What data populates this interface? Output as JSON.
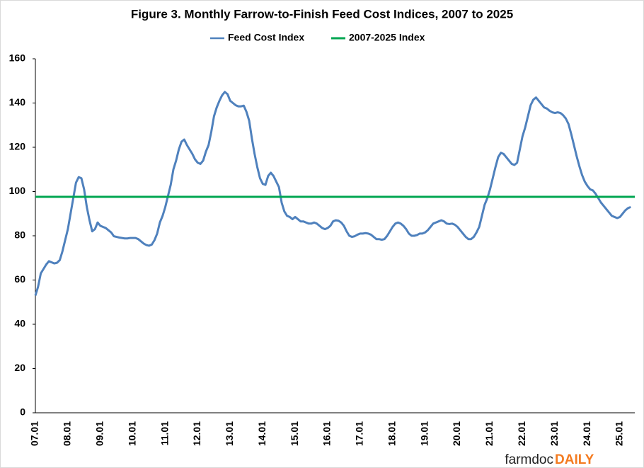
{
  "chart_data": {
    "type": "line",
    "title": "Figure 3.  Monthly Farrow-to-Finish Feed Cost Indices, 2007 to 2025",
    "categories": [
      "07.01",
      null,
      null,
      null,
      null,
      null,
      null,
      null,
      null,
      null,
      null,
      null,
      "08.01",
      null,
      null,
      null,
      null,
      null,
      null,
      null,
      null,
      null,
      null,
      null,
      "09.01",
      null,
      null,
      null,
      null,
      null,
      null,
      null,
      null,
      null,
      null,
      null,
      "10.01",
      null,
      null,
      null,
      null,
      null,
      null,
      null,
      null,
      null,
      null,
      null,
      "11.01",
      null,
      null,
      null,
      null,
      null,
      null,
      null,
      null,
      null,
      null,
      null,
      "12.01",
      null,
      null,
      null,
      null,
      null,
      null,
      null,
      null,
      null,
      null,
      null,
      "13.01",
      null,
      null,
      null,
      null,
      null,
      null,
      null,
      null,
      null,
      null,
      null,
      "14.01",
      null,
      null,
      null,
      null,
      null,
      null,
      null,
      null,
      null,
      null,
      null,
      "15.01",
      null,
      null,
      null,
      null,
      null,
      null,
      null,
      null,
      null,
      null,
      null,
      "16.01",
      null,
      null,
      null,
      null,
      null,
      null,
      null,
      null,
      null,
      null,
      null,
      "17.01",
      null,
      null,
      null,
      null,
      null,
      null,
      null,
      null,
      null,
      null,
      null,
      "18.01",
      null,
      null,
      null,
      null,
      null,
      null,
      null,
      null,
      null,
      null,
      null,
      "19.01",
      null,
      null,
      null,
      null,
      null,
      null,
      null,
      null,
      null,
      null,
      null,
      "20.01",
      null,
      null,
      null,
      null,
      null,
      null,
      null,
      null,
      null,
      null,
      null,
      "21.01",
      null,
      null,
      null,
      null,
      null,
      null,
      null,
      null,
      null,
      null,
      null,
      "22.01",
      null,
      null,
      null,
      null,
      null,
      null,
      null,
      null,
      null,
      null,
      null,
      "23.01",
      null,
      null,
      null,
      null,
      null,
      null,
      null,
      null,
      null,
      null,
      null,
      "24.01",
      null,
      null,
      null,
      null,
      null,
      null,
      null,
      null,
      null,
      null,
      null,
      "25.01",
      null,
      null,
      null,
      null
    ],
    "series": [
      {
        "name": "Feed Cost Index",
        "color": "#4f81bd",
        "values": [
          53,
          57,
          63,
          65,
          67,
          68.5,
          68,
          67.5,
          67.8,
          69,
          73,
          78,
          83,
          90,
          97,
          104,
          106.5,
          106,
          101,
          93,
          87,
          82,
          83,
          86,
          84.5,
          84,
          83.5,
          82.5,
          81.5,
          79.8,
          79.5,
          79.2,
          79,
          78.8,
          78.8,
          79,
          79,
          79,
          78.5,
          77.5,
          76.5,
          75.8,
          75.5,
          76,
          78,
          81,
          86,
          89,
          93,
          98,
          103,
          110,
          114,
          119,
          122.5,
          123.5,
          121,
          119,
          117,
          114.5,
          113,
          112.5,
          114,
          118,
          121,
          127,
          134,
          138,
          141,
          143.5,
          145,
          144,
          141,
          140,
          139,
          138.5,
          138.5,
          138.8,
          136,
          132,
          124,
          117,
          111,
          106,
          103.5,
          103,
          107,
          108.5,
          107,
          104.5,
          102,
          95,
          91,
          89,
          88.5,
          87.5,
          88.5,
          87.5,
          86.5,
          86.5,
          86,
          85.5,
          85.5,
          86,
          85.5,
          84.5,
          83.5,
          83,
          83.5,
          84.5,
          86.5,
          87,
          86.8,
          86,
          84.5,
          82,
          80,
          79.5,
          79.8,
          80.5,
          81,
          81,
          81.2,
          81,
          80.5,
          79.5,
          78.5,
          78.5,
          78.2,
          78.5,
          80,
          82,
          84,
          85.5,
          86,
          85.5,
          84.5,
          83,
          81,
          80,
          80,
          80.3,
          81,
          81,
          81.5,
          82.5,
          84,
          85.5,
          86,
          86.5,
          87,
          86.5,
          85.5,
          85.3,
          85.5,
          85,
          84,
          82.5,
          81,
          79.5,
          78.5,
          78.5,
          79.5,
          81.5,
          84,
          89,
          94,
          97,
          101,
          106,
          111,
          115.5,
          117.5,
          117,
          115.5,
          114,
          112.5,
          112,
          113,
          119,
          125,
          129,
          134,
          139,
          141.5,
          142.5,
          141,
          139.5,
          138,
          137.5,
          136.5,
          135.8,
          135.5,
          135.8,
          135.5,
          134.5,
          133,
          130.5,
          126,
          121,
          116,
          111.5,
          107.5,
          104.5,
          102.5,
          101,
          100.5,
          99,
          97,
          95,
          93.5,
          92,
          90.5,
          89,
          88.5,
          88,
          88.5,
          90,
          91.5,
          92.5,
          93
        ]
      }
    ],
    "reference_line": {
      "name": "2007-2025 Index",
      "color": "#00a651",
      "value": 97.6
    },
    "ylim": [
      0,
      160
    ],
    "yticks": [
      0,
      20,
      40,
      60,
      80,
      100,
      120,
      140,
      160
    ],
    "grid": false
  },
  "logo": {
    "farmdoc": "farmdoc",
    "daily": "DAILY"
  }
}
